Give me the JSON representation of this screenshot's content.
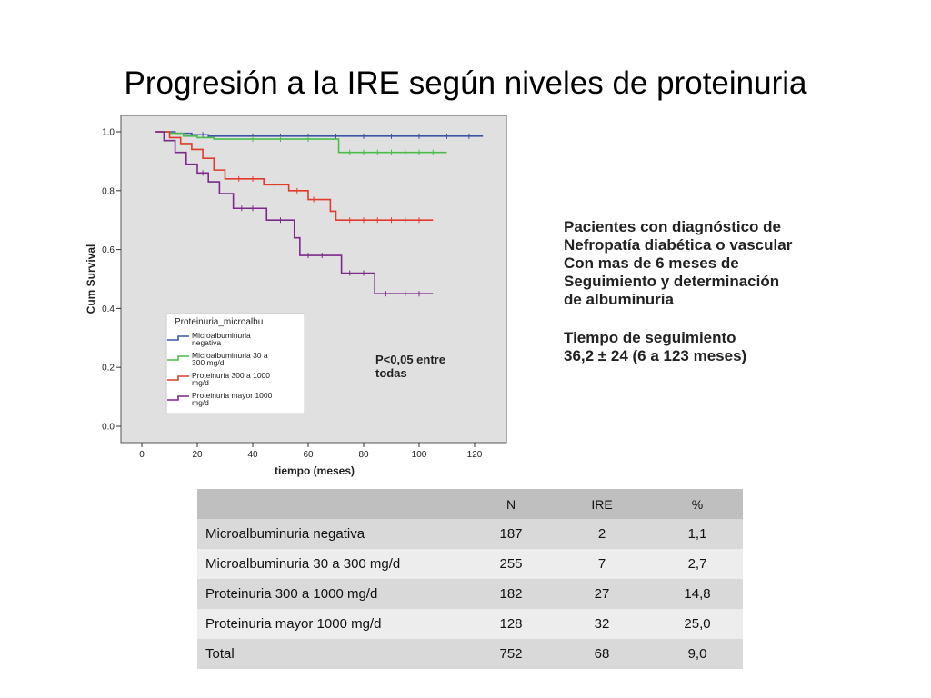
{
  "slide": {
    "title": "Progresión a la IRE según niveles de proteinuria"
  },
  "info": {
    "lines_a": [
      "Pacientes con diagnóstico de",
      "Nefropatía diabética o vascular",
      "Con mas de 6 meses de",
      "Seguimiento y determinación",
      "de albuminuria"
    ],
    "lines_b": [
      "Tiempo de seguimiento",
      "36,2 ± 24 (6 a 123 meses)"
    ]
  },
  "chart_data": {
    "type": "line",
    "step": true,
    "title": "",
    "xlabel": "tiempo (meses)",
    "ylabel": "Cum Survival",
    "xlim": [
      0,
      125
    ],
    "ylim": [
      0,
      1.0
    ],
    "x_ticks": [
      "0",
      "20",
      "40",
      "60",
      "80",
      "100",
      "120"
    ],
    "y_ticks": [
      "0.0",
      "0.2",
      "0.4",
      "0.6",
      "0.8",
      "1.0"
    ],
    "grid": false,
    "background": "#e0e0e0",
    "annotation": [
      "P<0,05 entre",
      "todas"
    ],
    "legend": {
      "title": "Proteinuria_microalbu",
      "placement": "bottom-left",
      "entries": [
        [
          "Microalbuminuria",
          "negativa"
        ],
        [
          "Microalbuminuria 30 a",
          "300 mg/d"
        ],
        [
          "Proteinuria 300 a 1000",
          "mg/d"
        ],
        [
          "Proteinuria mayor 1000",
          "mg/d"
        ]
      ]
    },
    "series": [
      {
        "color": "#3a55a4",
        "x": [
          5,
          12,
          18,
          24,
          123
        ],
        "y": [
          1.0,
          0.995,
          0.99,
          0.985,
          0.985
        ],
        "censor_x": [
          22,
          30,
          40,
          50,
          60,
          70,
          80,
          90,
          100,
          110,
          118
        ]
      },
      {
        "color": "#4cbb4c",
        "x": [
          5,
          10,
          15,
          20,
          26,
          70,
          71,
          110
        ],
        "y": [
          1.0,
          0.995,
          0.985,
          0.98,
          0.975,
          0.975,
          0.93,
          0.93
        ],
        "censor_x": [
          30,
          40,
          50,
          60,
          75,
          80,
          85,
          90,
          95,
          100,
          105
        ]
      },
      {
        "color": "#e03c2c",
        "x": [
          5,
          10,
          14,
          18,
          22,
          26,
          30,
          44,
          53,
          60,
          68,
          70,
          105
        ],
        "y": [
          1.0,
          0.98,
          0.96,
          0.94,
          0.91,
          0.87,
          0.84,
          0.82,
          0.8,
          0.77,
          0.73,
          0.7,
          0.7
        ],
        "censor_x": [
          35,
          40,
          48,
          56,
          62,
          75,
          80,
          85,
          90,
          95,
          100
        ]
      },
      {
        "color": "#7b2a8a",
        "x": [
          5,
          8,
          12,
          16,
          20,
          24,
          28,
          33,
          45,
          55,
          57,
          72,
          84,
          105
        ],
        "y": [
          1.0,
          0.97,
          0.93,
          0.89,
          0.86,
          0.83,
          0.79,
          0.74,
          0.7,
          0.64,
          0.58,
          0.52,
          0.45,
          0.45
        ],
        "censor_x": [
          22,
          36,
          40,
          50,
          60,
          65,
          75,
          80,
          88,
          95,
          100
        ]
      }
    ]
  },
  "table": {
    "headers": [
      "",
      "N",
      "IRE",
      "%"
    ],
    "rows": [
      [
        "Microalbuminuria negativa",
        "187",
        "2",
        "1,1"
      ],
      [
        "Microalbuminuria 30 a 300 mg/d",
        "255",
        "7",
        "2,7"
      ],
      [
        "Proteinuria 300 a 1000 mg/d",
        "182",
        "27",
        "14,8"
      ],
      [
        "Proteinuria mayor 1000 mg/d",
        "128",
        "32",
        "25,0"
      ],
      [
        "Total",
        "752",
        "68",
        "9,0"
      ]
    ]
  }
}
